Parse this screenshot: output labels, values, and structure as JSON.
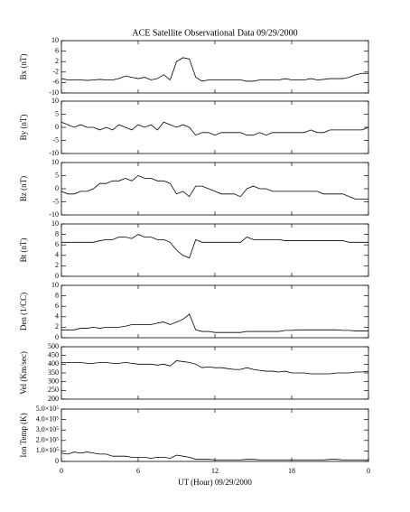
{
  "chart_data": [
    {
      "type": "line",
      "title": "ACE Satellite Observational Data   09/29/2000",
      "y_label": "Bx (nT)",
      "color": "#000000",
      "x": [
        0,
        0.5,
        1,
        1.5,
        2,
        2.5,
        3,
        3.5,
        4,
        4.5,
        5,
        5.5,
        6,
        6.5,
        7,
        7.5,
        8,
        8.5,
        9,
        9.5,
        10,
        10.5,
        11,
        11.5,
        12,
        12.5,
        13,
        13.5,
        14,
        14.5,
        15,
        15.5,
        16,
        16.5,
        17,
        17.5,
        18,
        18.5,
        19,
        19.5,
        20,
        20.5,
        21,
        21.5,
        22,
        22.5,
        23,
        23.5,
        24
      ],
      "values": [
        -4.5,
        -5,
        -5,
        -5,
        -5.2,
        -5,
        -4.8,
        -5,
        -5,
        -4.5,
        -3.5,
        -4,
        -4.5,
        -4,
        -5,
        -4.5,
        -3,
        -5,
        2,
        3.5,
        3,
        -4,
        -5.5,
        -5,
        -5,
        -5,
        -5,
        -5,
        -5,
        -5.5,
        -5.5,
        -5,
        -5,
        -5,
        -5,
        -4.5,
        -5,
        -5,
        -5,
        -4.5,
        -5,
        -4.8,
        -4.5,
        -4.5,
        -4.5,
        -4,
        -3,
        -2.5,
        -2.5
      ],
      "xlim": [
        0,
        24
      ],
      "xticks": [
        0,
        6,
        12,
        18,
        {
          "value": 24,
          "label": "0"
        }
      ],
      "ylim": [
        -10,
        10
      ],
      "yticks": [
        -10,
        -6,
        -2,
        2,
        6,
        10
      ]
    },
    {
      "type": "line",
      "y_label": "By (nT)",
      "color": "#000000",
      "x": [
        0,
        0.5,
        1,
        1.5,
        2,
        2.5,
        3,
        3.5,
        4,
        4.5,
        5,
        5.5,
        6,
        6.5,
        7,
        7.5,
        8,
        8.5,
        9,
        9.5,
        10,
        10.5,
        11,
        11.5,
        12,
        12.5,
        13,
        13.5,
        14,
        14.5,
        15,
        15.5,
        16,
        16.5,
        17,
        17.5,
        18,
        18.5,
        19,
        19.5,
        20,
        20.5,
        21,
        21.5,
        22,
        22.5,
        23,
        23.5,
        24
      ],
      "values": [
        2,
        1,
        0,
        1,
        0,
        0,
        -1,
        0,
        -1,
        1,
        0,
        -1,
        1,
        0,
        1,
        -1,
        2,
        1,
        0,
        1,
        0,
        -3,
        -2,
        -2,
        -3,
        -2,
        -2,
        -2,
        -2,
        -3,
        -3,
        -2,
        -3,
        -2,
        -2,
        -2,
        -2,
        -2,
        -2,
        -1,
        -2,
        -2,
        -1,
        -1,
        -1,
        -1,
        -1,
        -1,
        0
      ],
      "xlim": [
        0,
        24
      ],
      "xticks": [
        0,
        6,
        12,
        18,
        {
          "value": 24,
          "label": "0"
        }
      ],
      "ylim": [
        -10,
        10
      ],
      "yticks": [
        -10,
        -5,
        0,
        5,
        10
      ]
    },
    {
      "type": "line",
      "y_label": "Bz (nT)",
      "color": "#000000",
      "x": [
        0,
        0.5,
        1,
        1.5,
        2,
        2.5,
        3,
        3.5,
        4,
        4.5,
        5,
        5.5,
        6,
        6.5,
        7,
        7.5,
        8,
        8.5,
        9,
        9.5,
        10,
        10.5,
        11,
        11.5,
        12,
        12.5,
        13,
        13.5,
        14,
        14.5,
        15,
        15.5,
        16,
        16.5,
        17,
        17.5,
        18,
        18.5,
        19,
        19.5,
        20,
        20.5,
        21,
        21.5,
        22,
        22.5,
        23,
        23.5,
        24
      ],
      "values": [
        -1,
        -2,
        -2,
        -1,
        -1,
        0,
        2,
        2,
        3,
        3,
        4,
        3,
        5,
        4,
        4,
        3,
        3,
        2,
        -2,
        -1,
        -3,
        1,
        1,
        0,
        -1,
        -2,
        -2,
        -2,
        -3,
        0,
        1,
        0,
        0,
        -1,
        -1,
        -1,
        -1,
        -1,
        -1,
        -1,
        -1,
        -2,
        -2,
        -2,
        -2,
        -3,
        -4,
        -4,
        -4
      ],
      "xlim": [
        0,
        24
      ],
      "xticks": [
        0,
        6,
        12,
        18,
        {
          "value": 24,
          "label": "0"
        }
      ],
      "ylim": [
        -10,
        10
      ],
      "yticks": [
        -10,
        -5,
        0,
        5,
        10
      ]
    },
    {
      "type": "line",
      "y_label": "Bt (nT)",
      "color": "#000000",
      "x": [
        0,
        0.5,
        1,
        1.5,
        2,
        2.5,
        3,
        3.5,
        4,
        4.5,
        5,
        5.5,
        6,
        6.5,
        7,
        7.5,
        8,
        8.5,
        9,
        9.5,
        10,
        10.5,
        11,
        11.5,
        12,
        12.5,
        13,
        13.5,
        14,
        14.5,
        15,
        15.5,
        16,
        16.5,
        17,
        17.5,
        18,
        18.5,
        19,
        19.5,
        20,
        20.5,
        21,
        21.5,
        22,
        22.5,
        23,
        23.5,
        24
      ],
      "values": [
        6.5,
        6.5,
        6.5,
        6.5,
        6.5,
        6.5,
        6.8,
        7,
        7,
        7.5,
        7.5,
        7.2,
        8,
        7.5,
        7.5,
        7,
        7,
        6.5,
        5,
        4,
        3.5,
        7,
        6.5,
        6.5,
        6.5,
        6.5,
        6.5,
        6.5,
        6.5,
        7.5,
        7,
        7,
        7,
        7,
        7,
        6.8,
        6.8,
        6.8,
        6.8,
        6.8,
        6.8,
        6.8,
        6.8,
        6.8,
        6.8,
        6.5,
        6.5,
        6.5,
        6.5
      ],
      "xlim": [
        0,
        24
      ],
      "xticks": [
        0,
        6,
        12,
        18,
        {
          "value": 24,
          "label": "0"
        }
      ],
      "ylim": [
        0,
        10
      ],
      "yticks": [
        0,
        2,
        4,
        6,
        8,
        10
      ]
    },
    {
      "type": "line",
      "y_label": "Den (1/CC)",
      "color": "#000000",
      "x": [
        0,
        0.5,
        1,
        1.5,
        2,
        2.5,
        3,
        3.5,
        4,
        4.5,
        5,
        5.5,
        6,
        6.5,
        7,
        7.5,
        8,
        8.5,
        9,
        9.5,
        10,
        10.5,
        11,
        11.5,
        12,
        12.5,
        13,
        13.5,
        14,
        14.5,
        15,
        15.5,
        16,
        16.5,
        17,
        17.5,
        18,
        18.5,
        19,
        19.5,
        20,
        20.5,
        21,
        21.5,
        22,
        22.5,
        23,
        23.5,
        24
      ],
      "values": [
        1.5,
        1.5,
        1.5,
        1.8,
        1.8,
        2,
        1.8,
        2,
        2,
        2,
        2.2,
        2.5,
        2.5,
        2.5,
        2.5,
        2.8,
        3,
        2.5,
        3,
        3.5,
        4.5,
        1.5,
        1.2,
        1.2,
        1,
        1,
        1,
        1,
        1,
        1.2,
        1.2,
        1.2,
        1.2,
        1.2,
        1.2,
        1.4,
        1.4,
        1.5,
        1.5,
        1.5,
        1.5,
        1.5,
        1.5,
        1.5,
        1.4,
        1.4,
        1.3,
        1.3,
        1.3
      ],
      "xlim": [
        0,
        24
      ],
      "xticks": [
        0,
        6,
        12,
        18,
        {
          "value": 24,
          "label": "0"
        }
      ],
      "ylim": [
        0,
        10
      ],
      "yticks": [
        0,
        2,
        4,
        6,
        8,
        10
      ]
    },
    {
      "type": "line",
      "y_label": "Vel (Km/sec)",
      "color": "#000000",
      "x": [
        0,
        0.5,
        1,
        1.5,
        2,
        2.5,
        3,
        3.5,
        4,
        4.5,
        5,
        5.5,
        6,
        6.5,
        7,
        7.5,
        8,
        8.5,
        9,
        9.5,
        10,
        10.5,
        11,
        11.5,
        12,
        12.5,
        13,
        13.5,
        14,
        14.5,
        15,
        15.5,
        16,
        16.5,
        17,
        17.5,
        18,
        18.5,
        19,
        19.5,
        20,
        20.5,
        21,
        21.5,
        22,
        22.5,
        23,
        23.5,
        24
      ],
      "values": [
        410,
        410,
        410,
        410,
        405,
        405,
        410,
        410,
        405,
        405,
        410,
        405,
        400,
        400,
        400,
        395,
        400,
        390,
        420,
        415,
        410,
        400,
        380,
        385,
        380,
        380,
        375,
        370,
        370,
        380,
        370,
        365,
        360,
        360,
        355,
        360,
        350,
        350,
        350,
        345,
        345,
        345,
        345,
        350,
        350,
        350,
        355,
        355,
        360
      ],
      "xlim": [
        0,
        24
      ],
      "xticks": [
        0,
        6,
        12,
        18,
        {
          "value": 24,
          "label": "0"
        }
      ],
      "ylim": [
        200,
        500
      ],
      "yticks": [
        200,
        250,
        300,
        350,
        400,
        450,
        500
      ]
    },
    {
      "type": "line",
      "y_label": "Ion Temp (K)",
      "x_label": "UT (Hour)   09/29/2000",
      "color": "#000000",
      "x": [
        0,
        0.5,
        1,
        1.5,
        2,
        2.5,
        3,
        3.5,
        4,
        4.5,
        5,
        5.5,
        6,
        6.5,
        7,
        7.5,
        8,
        8.5,
        9,
        9.5,
        10,
        10.5,
        11,
        11.5,
        12,
        12.5,
        13,
        13.5,
        14,
        14.5,
        15,
        15.5,
        16,
        16.5,
        17,
        17.5,
        18,
        18.5,
        19,
        19.5,
        20,
        20.5,
        21,
        21.5,
        22,
        22.5,
        23,
        23.5,
        24
      ],
      "values": [
        80000,
        70000,
        90000,
        80000,
        90000,
        80000,
        70000,
        70000,
        50000,
        50000,
        50000,
        40000,
        40000,
        40000,
        30000,
        40000,
        40000,
        30000,
        60000,
        50000,
        40000,
        20000,
        20000,
        20000,
        15000,
        15000,
        15000,
        15000,
        15000,
        20000,
        20000,
        15000,
        15000,
        15000,
        15000,
        15000,
        15000,
        15000,
        15000,
        15000,
        15000,
        15000,
        20000,
        20000,
        15000,
        15000,
        15000,
        15000,
        15000
      ],
      "xlim": [
        0,
        24
      ],
      "xticks": [
        0,
        6,
        12,
        18,
        {
          "value": 24,
          "label": "0"
        }
      ],
      "ylim": [
        0,
        500000
      ],
      "yticks": [
        0,
        {
          "value": 100000,
          "label": "1.0×10⁵"
        },
        {
          "value": 200000,
          "label": "2.0×10⁵"
        },
        {
          "value": 300000,
          "label": "3.0×10⁵"
        },
        {
          "value": 400000,
          "label": "4.0×10⁵"
        },
        {
          "value": 500000,
          "label": "5.0×10⁵"
        }
      ]
    }
  ]
}
